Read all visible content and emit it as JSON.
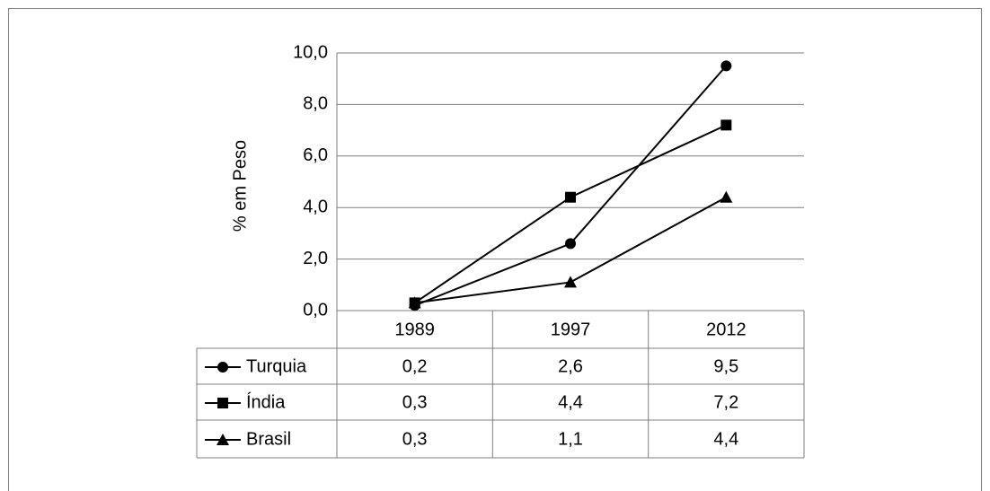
{
  "chart_data": {
    "type": "line",
    "y_label": "% em Peso",
    "categories": [
      "1989",
      "1997",
      "2012"
    ],
    "series": [
      {
        "name": "Turquia",
        "color": "#000000",
        "marker": "circle",
        "values": [
          0.2,
          2.6,
          9.5
        ],
        "value_labels": [
          "0,2",
          "2,6",
          "9,5"
        ]
      },
      {
        "name": "Índia",
        "color": "#000000",
        "marker": "square",
        "values": [
          0.3,
          4.4,
          7.2
        ],
        "value_labels": [
          "0,3",
          "4,4",
          "7,2"
        ]
      },
      {
        "name": "Brasil",
        "color": "#000000",
        "marker": "triangle",
        "values": [
          0.3,
          1.1,
          4.4
        ],
        "value_labels": [
          "0,3",
          "1,1",
          "4,4"
        ]
      }
    ],
    "ylim": [
      0,
      10
    ],
    "yticks": [
      {
        "value": 0,
        "label": "0,0"
      },
      {
        "value": 2,
        "label": "2,0"
      },
      {
        "value": 4,
        "label": "4,0"
      },
      {
        "value": 6,
        "label": "6,0"
      },
      {
        "value": 8,
        "label": "8,0"
      },
      {
        "value": 10,
        "label": "10,0"
      }
    ],
    "grid": true
  }
}
